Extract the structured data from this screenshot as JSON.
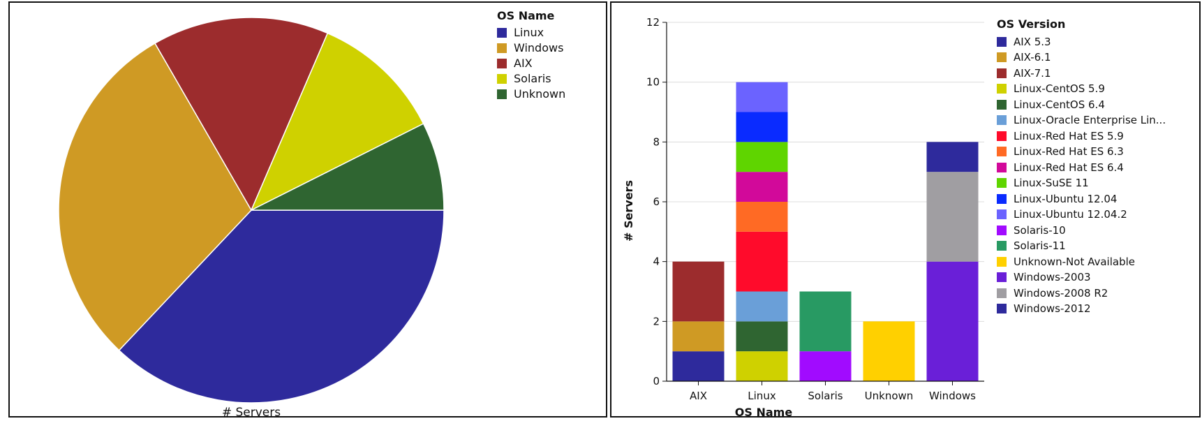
{
  "chart_data": [
    {
      "type": "pie",
      "caption": "# Servers",
      "legend_title": "OS Name",
      "legend_position": "top-right",
      "slices": [
        {
          "label": "Linux",
          "value": 10,
          "color": "#2E2A9C"
        },
        {
          "label": "Windows",
          "value": 8,
          "color": "#CF9A24"
        },
        {
          "label": "AIX",
          "value": 4,
          "color": "#9C2C2D"
        },
        {
          "label": "Solaris",
          "value": 3,
          "color": "#CFD100"
        },
        {
          "label": "Unknown",
          "value": 2,
          "color": "#2F6531"
        }
      ]
    },
    {
      "type": "bar",
      "stacked": true,
      "xlabel": "OS Name",
      "ylabel": "# Servers",
      "ylim": [
        0,
        12
      ],
      "yticks": [
        0,
        2,
        4,
        6,
        8,
        10,
        12
      ],
      "grid": true,
      "legend_title": "OS Version",
      "legend_position": "right",
      "categories": [
        "AIX",
        "Linux",
        "Solaris",
        "Unknown",
        "Windows"
      ],
      "series": [
        {
          "name": "AIX 5.3",
          "color": "#2E2A9C",
          "values": [
            1,
            0,
            0,
            0,
            0
          ]
        },
        {
          "name": "AIX-6.1",
          "color": "#CF9A24",
          "values": [
            1,
            0,
            0,
            0,
            0
          ]
        },
        {
          "name": "AIX-7.1",
          "color": "#9C2C2D",
          "values": [
            2,
            0,
            0,
            0,
            0
          ]
        },
        {
          "name": "Linux-CentOS 5.9",
          "color": "#CFD100",
          "values": [
            0,
            1,
            0,
            0,
            0
          ]
        },
        {
          "name": "Linux-CentOS 6.4",
          "color": "#2F6531",
          "values": [
            0,
            1,
            0,
            0,
            0
          ]
        },
        {
          "name": "Linux-Oracle Enterprise Lin...",
          "color": "#6A9FD8",
          "values": [
            0,
            1,
            0,
            0,
            0
          ]
        },
        {
          "name": "Linux-Red Hat ES 5.9",
          "color": "#FF0B2B",
          "values": [
            0,
            2,
            0,
            0,
            0
          ]
        },
        {
          "name": "Linux-Red Hat ES 6.3",
          "color": "#FF6A24",
          "values": [
            0,
            1,
            0,
            0,
            0
          ]
        },
        {
          "name": "Linux-Red Hat ES 6.4",
          "color": "#D2099A",
          "values": [
            0,
            1,
            0,
            0,
            0
          ]
        },
        {
          "name": "Linux-SuSE 11",
          "color": "#5FD500",
          "values": [
            0,
            1,
            0,
            0,
            0
          ]
        },
        {
          "name": "Linux-Ubuntu 12.04",
          "color": "#0A2BFF",
          "values": [
            0,
            1,
            0,
            0,
            0
          ]
        },
        {
          "name": "Linux-Ubuntu 12.04.2",
          "color": "#6B63FF",
          "values": [
            0,
            1,
            0,
            0,
            0
          ]
        },
        {
          "name": "Solaris-10",
          "color": "#A10BFF",
          "values": [
            0,
            0,
            1,
            0,
            0
          ]
        },
        {
          "name": "Solaris-11",
          "color": "#289A63",
          "values": [
            0,
            0,
            2,
            0,
            0
          ]
        },
        {
          "name": "Unknown-Not Available",
          "color": "#FFD000",
          "values": [
            0,
            0,
            0,
            2,
            0
          ]
        },
        {
          "name": "Windows-2003",
          "color": "#6A1FD8",
          "values": [
            0,
            0,
            0,
            0,
            4
          ]
        },
        {
          "name": "Windows-2008 R2",
          "color": "#A09EA2",
          "values": [
            0,
            0,
            0,
            0,
            3
          ]
        },
        {
          "name": "Windows-2012",
          "color": "#2E2A9C",
          "values": [
            0,
            0,
            0,
            0,
            1
          ]
        }
      ]
    }
  ]
}
